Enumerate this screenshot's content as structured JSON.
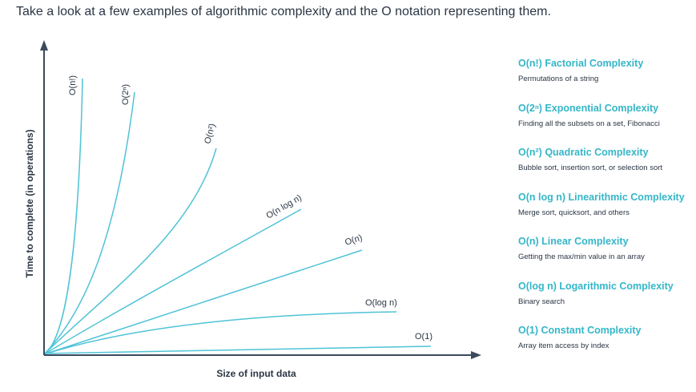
{
  "intro": "Take a look at a few examples of algorithmic complexity and the O notation representing them.",
  "axes": {
    "x_label": "Size of input data",
    "y_label": "Time to complete (in operations)"
  },
  "curves": [
    {
      "id": "factorial",
      "label": "O(n!)"
    },
    {
      "id": "exponential",
      "label": "O(2ⁿ)"
    },
    {
      "id": "quadratic",
      "label": "O(n²)"
    },
    {
      "id": "linearithmic",
      "label": "O(n log n)"
    },
    {
      "id": "linear",
      "label": "O(n)"
    },
    {
      "id": "logarithmic",
      "label": "O(log n)"
    },
    {
      "id": "constant",
      "label": "O(1)"
    }
  ],
  "legend": [
    {
      "title": "O(n!) Factorial Complexity",
      "desc": "Permutations of a string"
    },
    {
      "title": "O(2ⁿ) Exponential Complexity",
      "desc": "Finding all the subsets on a set, Fibonacci"
    },
    {
      "title": "O(n²) Quadratic Complexity",
      "desc": "Bubble sort, insertion sort, or selection sort"
    },
    {
      "title": "O(n log n) Linearithmic Complexity",
      "desc": "Merge sort, quicksort, and others"
    },
    {
      "title": "O(n) Linear Complexity",
      "desc": "Getting the max/min value in an array"
    },
    {
      "title": "O(log n) Logarithmic Complexity",
      "desc": "Binary search"
    },
    {
      "title": "O(1) Constant Complexity",
      "desc": "Array item access by index"
    }
  ],
  "colors": {
    "curve": "#4fc3d6",
    "legend_title": "#35b6c8",
    "axis": "#3b4a5c"
  }
}
